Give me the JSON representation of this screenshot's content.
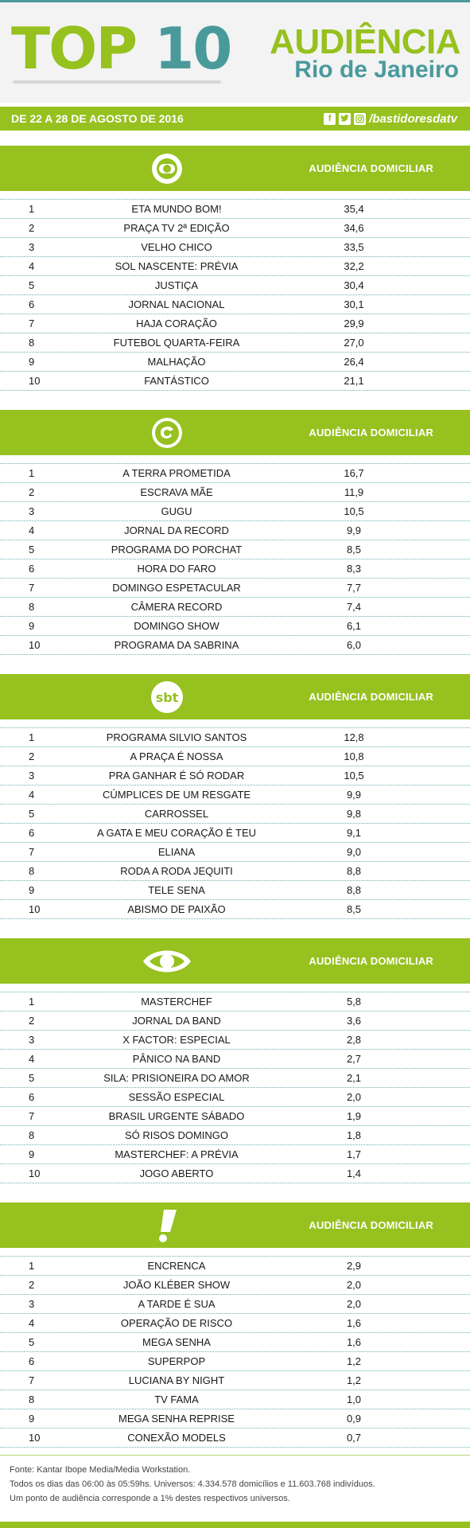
{
  "header": {
    "title_part1": "TOP",
    "title_part2": "10",
    "subtitle_line1": "AUDIÊNCIA",
    "subtitle_line2": "Rio de Janeiro",
    "date_range": "DE 22 A 28 DE AGOSTO DE 2016",
    "social_handle": "/bastidoresdatv",
    "social_icons": [
      "facebook-icon",
      "twitter-icon",
      "instagram-icon"
    ]
  },
  "colors": {
    "green": "#96c11f",
    "teal": "#4a9a9c"
  },
  "sections": [
    {
      "label": "AUDIÊNCIA DOMICILIAR",
      "logo": "globo-logo",
      "rows": [
        {
          "rank": "1",
          "program": "ETA MUNDO BOM!",
          "value": "35,4"
        },
        {
          "rank": "2",
          "program": "PRAÇA TV 2ª EDIÇÃO",
          "value": "34,6"
        },
        {
          "rank": "3",
          "program": "VELHO CHICO",
          "value": "33,5"
        },
        {
          "rank": "4",
          "program": "SOL NASCENTE: PRÉVIA",
          "value": "32,2"
        },
        {
          "rank": "5",
          "program": "JUSTIÇA",
          "value": "30,4"
        },
        {
          "rank": "6",
          "program": "JORNAL NACIONAL",
          "value": "30,1"
        },
        {
          "rank": "7",
          "program": "HAJA CORAÇÃO",
          "value": "29,9"
        },
        {
          "rank": "8",
          "program": "FUTEBOL QUARTA-FEIRA",
          "value": "27,0"
        },
        {
          "rank": "9",
          "program": "MALHAÇÃO",
          "value": "26,4"
        },
        {
          "rank": "10",
          "program": "FANTÁSTICO",
          "value": "21,1"
        }
      ]
    },
    {
      "label": "AUDIÊNCIA DOMICILIAR",
      "logo": "record-logo",
      "rows": [
        {
          "rank": "1",
          "program": "A TERRA PROMETIDA",
          "value": "16,7"
        },
        {
          "rank": "2",
          "program": "ESCRAVA MÃE",
          "value": "11,9"
        },
        {
          "rank": "3",
          "program": "GUGU",
          "value": "10,5"
        },
        {
          "rank": "4",
          "program": "JORNAL DA RECORD",
          "value": "9,9"
        },
        {
          "rank": "5",
          "program": "PROGRAMA DO PORCHAT",
          "value": "8,5"
        },
        {
          "rank": "6",
          "program": "HORA DO FARO",
          "value": "8,3"
        },
        {
          "rank": "7",
          "program": "DOMINGO ESPETACULAR",
          "value": "7,7"
        },
        {
          "rank": "8",
          "program": "CÂMERA RECORD",
          "value": "7,4"
        },
        {
          "rank": "9",
          "program": "DOMINGO SHOW",
          "value": "6,1"
        },
        {
          "rank": "10",
          "program": "PROGRAMA DA SABRINA",
          "value": "6,0"
        }
      ]
    },
    {
      "label": "AUDIÊNCIA DOMICILIAR",
      "logo": "sbt-logo",
      "logo_text": "sbt",
      "rows": [
        {
          "rank": "1",
          "program": "PROGRAMA SILVIO SANTOS",
          "value": "12,8"
        },
        {
          "rank": "2",
          "program": "A PRAÇA É NOSSA",
          "value": "10,8"
        },
        {
          "rank": "3",
          "program": "PRA GANHAR É SÓ RODAR",
          "value": "10,5"
        },
        {
          "rank": "4",
          "program": "CÚMPLICES DE UM RESGATE",
          "value": "9,9"
        },
        {
          "rank": "5",
          "program": "CARROSSEL",
          "value": "9,8"
        },
        {
          "rank": "6",
          "program": "A GATA E MEU CORAÇÃO É TEU",
          "value": "9,1"
        },
        {
          "rank": "7",
          "program": "ELIANA",
          "value": "9,0"
        },
        {
          "rank": "8",
          "program": "RODA A RODA JEQUITI",
          "value": "8,8"
        },
        {
          "rank": "9",
          "program": "TELE SENA",
          "value": "8,8"
        },
        {
          "rank": "10",
          "program": "ABISMO DE PAIXÃO",
          "value": "8,5"
        }
      ]
    },
    {
      "label": "AUDIÊNCIA DOMICILIAR",
      "logo": "band-logo",
      "rows": [
        {
          "rank": "1",
          "program": "MASTERCHEF",
          "value": "5,8"
        },
        {
          "rank": "2",
          "program": "JORNAL DA BAND",
          "value": "3,6"
        },
        {
          "rank": "3",
          "program": "X FACTOR: ESPECIAL",
          "value": "2,8"
        },
        {
          "rank": "4",
          "program": "PÂNICO NA BAND",
          "value": "2,7"
        },
        {
          "rank": "5",
          "program": "SILA: PRISIONEIRA DO AMOR",
          "value": "2,1"
        },
        {
          "rank": "6",
          "program": "SESSÃO ESPECIAL",
          "value": "2,0"
        },
        {
          "rank": "7",
          "program": "BRASIL URGENTE SÁBADO",
          "value": "1,9"
        },
        {
          "rank": "8",
          "program": "SÓ RISOS DOMINGO",
          "value": "1,8"
        },
        {
          "rank": "9",
          "program": "MASTERCHEF: A PRÉVIA",
          "value": "1,7"
        },
        {
          "rank": "10",
          "program": "JOGO ABERTO",
          "value": "1,4"
        }
      ]
    },
    {
      "label": "AUDIÊNCIA DOMICILIAR",
      "logo": "redetv-logo",
      "rows": [
        {
          "rank": "1",
          "program": "ENCRENCA",
          "value": "2,9"
        },
        {
          "rank": "2",
          "program": "JOÃO KLÉBER SHOW",
          "value": "2,0"
        },
        {
          "rank": "3",
          "program": "A TARDE É SUA",
          "value": "2,0"
        },
        {
          "rank": "4",
          "program": "OPERAÇÃO DE RISCO",
          "value": "1,6"
        },
        {
          "rank": "5",
          "program": "MEGA SENHA",
          "value": "1,6"
        },
        {
          "rank": "6",
          "program": "SUPERPOP",
          "value": "1,2"
        },
        {
          "rank": "7",
          "program": "LUCIANA BY NIGHT",
          "value": "1,2"
        },
        {
          "rank": "8",
          "program": "TV FAMA",
          "value": "1,0"
        },
        {
          "rank": "9",
          "program": "MEGA SENHA REPRISE",
          "value": "0,9"
        },
        {
          "rank": "10",
          "program": "CONEXÃO MODELS",
          "value": "0,7"
        }
      ]
    }
  ],
  "footer": {
    "line1": "Fonte: Kantar Ibope Media/Media Workstation.",
    "line2": "Todos os dias das 06:00 às 05:59hs. Universos: 4.334.578 domicílios e 11.603.768 indivíduos.",
    "line3": "Um ponto de audiência corresponde a 1% destes respectivos universos."
  }
}
